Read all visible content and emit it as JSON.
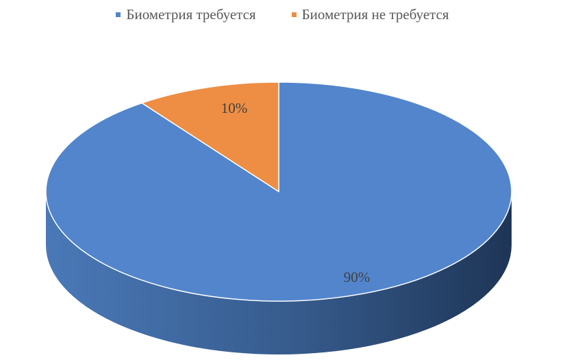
{
  "chart_data": {
    "type": "pie",
    "title": "",
    "series": [
      {
        "name": "",
        "categories": [
          "Биометрия требуется",
          "Биометрия не требуется"
        ],
        "values": [
          90,
          10
        ],
        "labels": [
          "90%",
          "10%"
        ],
        "colors": [
          "#5285CC",
          "#ED8E44"
        ],
        "side_colors": [
          "#2C4A72",
          "#A5612E"
        ]
      }
    ],
    "legend": {
      "placement": "top",
      "entries": [
        {
          "label": "Биометрия требуется",
          "color": "#5285CC"
        },
        {
          "label": "Биометрия не требуется",
          "color": "#ED8E44"
        }
      ]
    },
    "style": "3d"
  }
}
